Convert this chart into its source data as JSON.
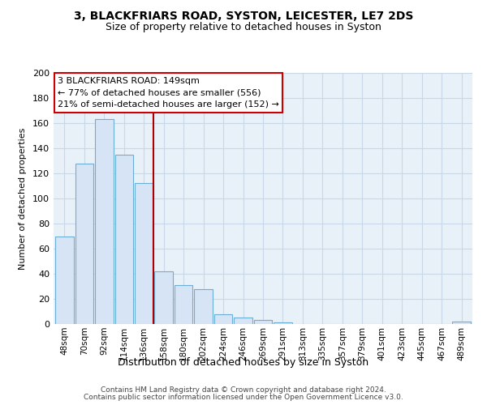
{
  "title1": "3, BLACKFRIARS ROAD, SYSTON, LEICESTER, LE7 2DS",
  "title2": "Size of property relative to detached houses in Syston",
  "xlabel": "Distribution of detached houses by size in Syston",
  "ylabel": "Number of detached properties",
  "bar_labels": [
    "48sqm",
    "70sqm",
    "92sqm",
    "114sqm",
    "136sqm",
    "158sqm",
    "180sqm",
    "202sqm",
    "224sqm",
    "246sqm",
    "269sqm",
    "291sqm",
    "313sqm",
    "335sqm",
    "357sqm",
    "379sqm",
    "401sqm",
    "423sqm",
    "445sqm",
    "467sqm",
    "489sqm"
  ],
  "bar_values": [
    70,
    128,
    163,
    135,
    112,
    42,
    31,
    28,
    8,
    5,
    3,
    1,
    0,
    0,
    0,
    0,
    0,
    0,
    0,
    0,
    2
  ],
  "bar_color": "#d6e4f5",
  "bar_edge_color": "#6baed6",
  "vline_x": 4.5,
  "vline_color": "#aa0000",
  "annotation_title": "3 BLACKFRIARS ROAD: 149sqm",
  "annotation_line1": "← 77% of detached houses are smaller (556)",
  "annotation_line2": "21% of semi-detached houses are larger (152) →",
  "annotation_box_facecolor": "#ffffff",
  "annotation_box_edgecolor": "#cc0000",
  "ylim": [
    0,
    200
  ],
  "yticks": [
    0,
    20,
    40,
    60,
    80,
    100,
    120,
    140,
    160,
    180,
    200
  ],
  "grid_color": "#c8d8e8",
  "background_color": "#e8f0f8",
  "footer1": "Contains HM Land Registry data © Crown copyright and database right 2024.",
  "footer2": "Contains public sector information licensed under the Open Government Licence v3.0."
}
